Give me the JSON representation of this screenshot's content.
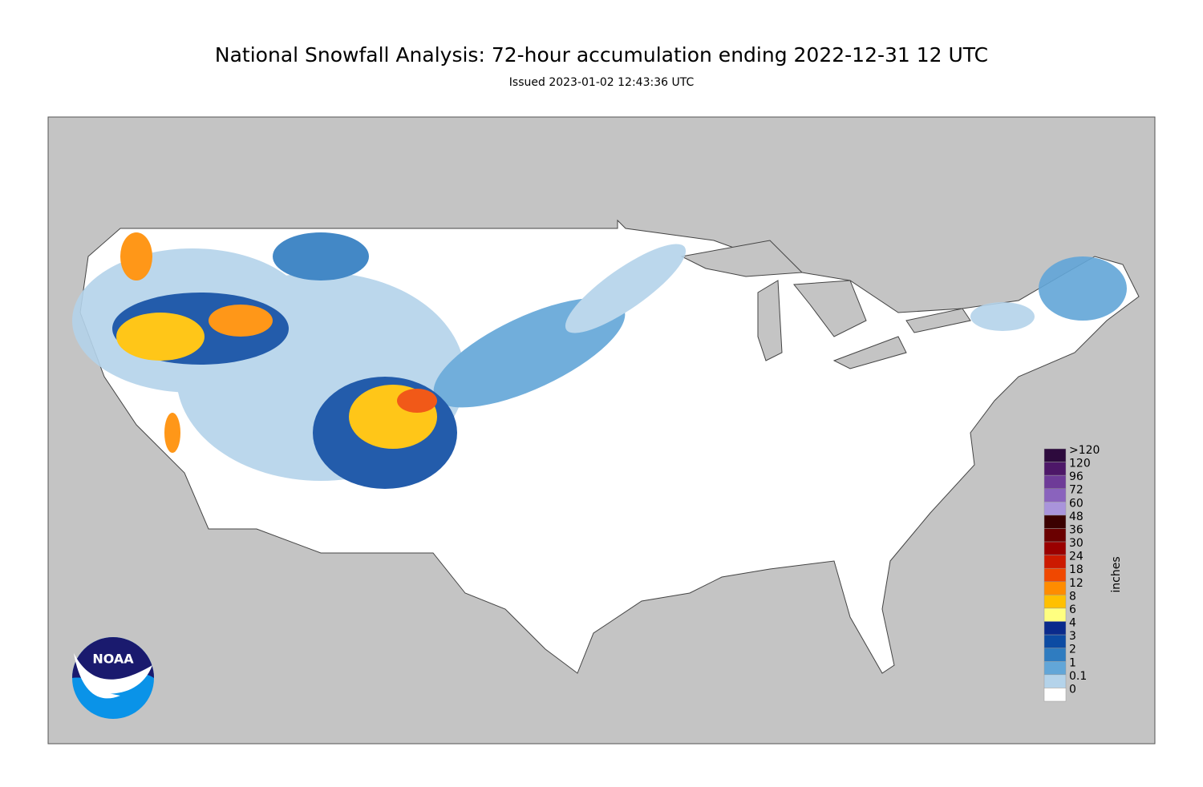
{
  "header": {
    "title": "National Snowfall Analysis: 72-hour accumulation ending 2022-12-31 12 UTC",
    "subtitle": "Issued 2023-01-02 12:43:36 UTC"
  },
  "legend": {
    "title": "inches",
    "levels": [
      {
        "label": ">120",
        "color": "#2d0a3d"
      },
      {
        "label": "120",
        "color": "#4d1768"
      },
      {
        "label": "96",
        "color": "#6e3b98"
      },
      {
        "label": "72",
        "color": "#8a63bd"
      },
      {
        "label": "60",
        "color": "#a994db"
      },
      {
        "label": "48",
        "color": "#3b0000"
      },
      {
        "label": "36",
        "color": "#6a0000"
      },
      {
        "label": "30",
        "color": "#9a0000"
      },
      {
        "label": "24",
        "color": "#cc1a00"
      },
      {
        "label": "18",
        "color": "#f04800"
      },
      {
        "label": "12",
        "color": "#ff8c00"
      },
      {
        "label": "8",
        "color": "#ffc000"
      },
      {
        "label": "6",
        "color": "#ffff80"
      },
      {
        "label": "4",
        "color": "#0a2a8c"
      },
      {
        "label": "3",
        "color": "#0c4ba3"
      },
      {
        "label": "2",
        "color": "#2f7cc0"
      },
      {
        "label": "1",
        "color": "#62a6d8"
      },
      {
        "label": "0.1",
        "color": "#b4d3ea"
      },
      {
        "label": "0",
        "color": "#ffffff"
      }
    ]
  },
  "logo": {
    "text": "NOAA"
  }
}
